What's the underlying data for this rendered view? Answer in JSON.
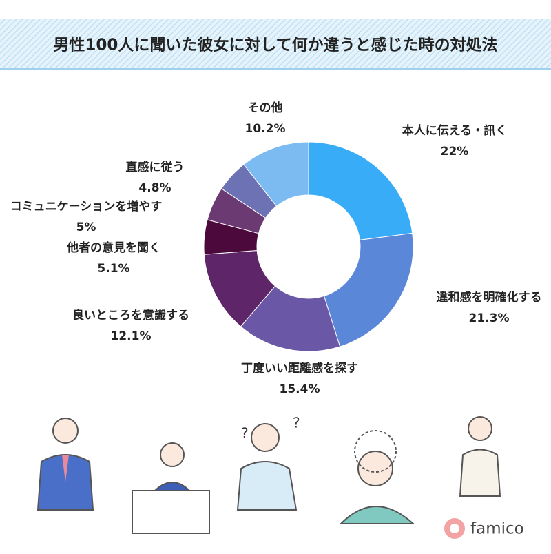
{
  "chart_data": {
    "type": "donut",
    "title": "男性100人に聞いた彼女に対して何か違うと感じた時の対処法",
    "categories": [
      "本人に伝える・訊く",
      "違和感を明確化する",
      "丁度いい距離感を探す",
      "良いところを意識する",
      "他者の意見を聞く",
      "コミュニケーションを増やす",
      "直感に従う",
      "その他"
    ],
    "values": [
      22,
      21.3,
      15.4,
      12.1,
      5.1,
      5,
      4.8,
      10.2
    ],
    "value_labels": [
      "22%",
      "21.3%",
      "15.4%",
      "12.1%",
      "5.1%",
      "5%",
      "4.8%",
      "10.2%"
    ],
    "colors": [
      "#38acf7",
      "#5b87d8",
      "#6a58a6",
      "#5e2668",
      "#4c0a3c",
      "#6b3a72",
      "#6d72b4",
      "#7cbaf2"
    ]
  },
  "brand": "famico"
}
